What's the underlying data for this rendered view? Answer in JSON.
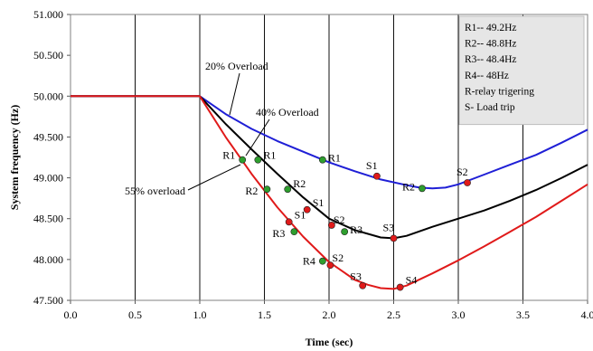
{
  "chart_data": {
    "type": "line",
    "xlabel": "Time (sec)",
    "ylabel": "System frequency (Hz)",
    "xlim": [
      0,
      4
    ],
    "ylim": [
      47.5,
      51.0
    ],
    "x_ticks": [
      "0.0",
      "0.5",
      "1.0",
      "1.5",
      "2.0",
      "2.5",
      "3.0",
      "3.5",
      "4.0"
    ],
    "y_ticks": [
      "47.500",
      "48.000",
      "48.500",
      "49.000",
      "49.500",
      "50.000",
      "50.500",
      "51.000"
    ],
    "grid": "vertical",
    "series": [
      {
        "name": "20% Overload",
        "color": "#1f1fd6",
        "x": [
          0.0,
          1.0,
          1.2,
          1.4,
          1.6,
          1.8,
          2.0,
          2.2,
          2.4,
          2.6,
          2.7,
          2.8,
          2.9,
          3.0,
          3.2,
          3.4,
          3.6,
          3.8,
          4.0
        ],
        "y": [
          50.0,
          50.0,
          49.78,
          49.6,
          49.45,
          49.32,
          49.19,
          49.08,
          48.98,
          48.91,
          48.88,
          48.87,
          48.88,
          48.92,
          49.04,
          49.16,
          49.28,
          49.43,
          49.59
        ]
      },
      {
        "name": "40% Overload",
        "color": "#000000",
        "x": [
          0.0,
          1.0,
          1.2,
          1.4,
          1.6,
          1.8,
          2.0,
          2.2,
          2.4,
          2.5,
          2.6,
          2.8,
          3.0,
          3.2,
          3.4,
          3.6,
          3.8,
          4.0
        ],
        "y": [
          50.0,
          50.0,
          49.66,
          49.35,
          49.05,
          48.76,
          48.5,
          48.36,
          48.27,
          48.26,
          48.29,
          48.4,
          48.5,
          48.6,
          48.72,
          48.85,
          49.0,
          49.16
        ]
      },
      {
        "name": "55% overload",
        "color": "#e01a1a",
        "x": [
          0.0,
          1.0,
          1.2,
          1.4,
          1.6,
          1.8,
          2.0,
          2.2,
          2.3,
          2.4,
          2.5,
          2.6,
          2.8,
          3.0,
          3.2,
          3.4,
          3.6,
          3.8,
          4.0
        ],
        "y": [
          50.0,
          50.0,
          49.5,
          49.05,
          48.64,
          48.28,
          47.97,
          47.75,
          47.69,
          47.65,
          47.64,
          47.68,
          47.83,
          47.99,
          48.16,
          48.34,
          48.52,
          48.72,
          48.92
        ]
      }
    ],
    "markers": [
      {
        "label": "R1",
        "x": 1.33,
        "y": 49.22,
        "color": "#2e9e2e"
      },
      {
        "label": "R1",
        "x": 1.45,
        "y": 49.22,
        "color": "#2e9e2e"
      },
      {
        "label": "R1",
        "x": 1.95,
        "y": 49.22,
        "color": "#2e9e2e"
      },
      {
        "label": "S1",
        "x": 2.37,
        "y": 49.02,
        "color": "#e01a1a"
      },
      {
        "label": "R2",
        "x": 2.72,
        "y": 48.87,
        "color": "#2e9e2e"
      },
      {
        "label": "S2",
        "x": 3.07,
        "y": 48.94,
        "color": "#e01a1a"
      },
      {
        "label": "R2",
        "x": 1.52,
        "y": 48.86,
        "color": "#2e9e2e"
      },
      {
        "label": "R2",
        "x": 1.68,
        "y": 48.86,
        "color": "#2e9e2e"
      },
      {
        "label": "S1",
        "x": 1.83,
        "y": 48.61,
        "color": "#e01a1a"
      },
      {
        "label": "S1",
        "x": 1.69,
        "y": 48.46,
        "color": "#e01a1a"
      },
      {
        "label": "R3",
        "x": 1.73,
        "y": 48.34,
        "color": "#2e9e2e"
      },
      {
        "label": "S2",
        "x": 2.02,
        "y": 48.42,
        "color": "#e01a1a"
      },
      {
        "label": "R3",
        "x": 2.12,
        "y": 48.34,
        "color": "#2e9e2e"
      },
      {
        "label": "S3",
        "x": 2.5,
        "y": 48.26,
        "color": "#e01a1a"
      },
      {
        "label": "R4",
        "x": 1.95,
        "y": 47.98,
        "color": "#2e9e2e"
      },
      {
        "label": "S2",
        "x": 2.01,
        "y": 47.93,
        "color": "#e01a1a"
      },
      {
        "label": "S3",
        "x": 2.26,
        "y": 47.68,
        "color": "#e01a1a"
      },
      {
        "label": "S4",
        "x": 2.55,
        "y": 47.66,
        "color": "#e01a1a"
      }
    ],
    "annotations": [
      "20% Overload",
      "40% Overload",
      "55% overload"
    ],
    "legend_box": {
      "position": "top-right",
      "lines": [
        "R1-- 49.2Hz",
        "R2-- 48.8Hz",
        "R3-- 48.4Hz",
        "R4-- 48Hz",
        "R-relay trigering",
        "S- Load trip"
      ]
    }
  }
}
